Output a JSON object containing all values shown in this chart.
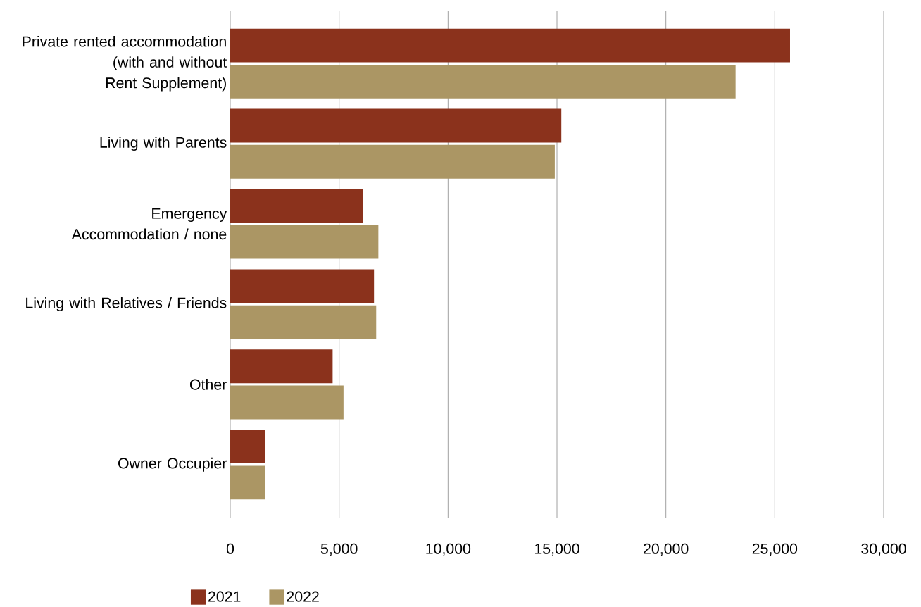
{
  "chart_data": {
    "type": "bar",
    "orientation": "horizontal",
    "categories": [
      "Private rented accommodation (with and without Rent Supplement)",
      "Living with Parents",
      "Emergency Accommodation / none",
      "Living with Relatives / Friends",
      "Other",
      "Owner Occupier"
    ],
    "series": [
      {
        "name": "2021",
        "color": "#8b321c",
        "values": [
          25700,
          15200,
          6100,
          6600,
          4700,
          1600
        ]
      },
      {
        "name": "2022",
        "color": "#ab9664",
        "values": [
          23200,
          14900,
          6800,
          6700,
          5200,
          1600
        ]
      }
    ],
    "xlim": [
      0,
      30000
    ],
    "xticks": [
      0,
      {
        "value": 5000,
        "label": "5,000"
      },
      {
        "value": 10000,
        "label": "10,000"
      },
      {
        "value": 15000,
        "label": "15,000"
      },
      {
        "value": 20000,
        "label": "20,000"
      },
      {
        "value": 25000,
        "label": "25,000"
      },
      {
        "value": 30000,
        "label": "30,000"
      }
    ],
    "grid": "x",
    "legend": "bottom"
  }
}
